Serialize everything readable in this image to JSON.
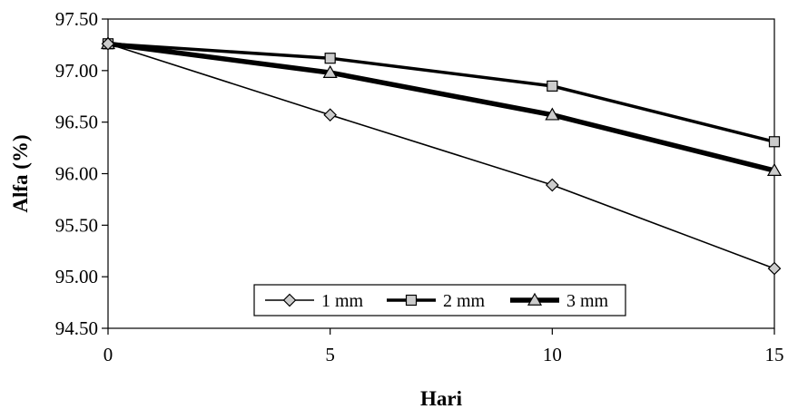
{
  "chart_data": {
    "type": "line",
    "xlabel": "Hari",
    "ylabel": "Alfa (%)",
    "x": [
      0,
      5,
      10,
      15
    ],
    "xlim": [
      0,
      15
    ],
    "ylim": [
      94.5,
      97.5
    ],
    "xticks": [
      "0",
      "5",
      "10",
      "15"
    ],
    "yticks": [
      "94.50",
      "95.00",
      "95.50",
      "96.00",
      "96.50",
      "97.00",
      "97.50"
    ],
    "grid": false,
    "legend_position": "bottom-center",
    "series": [
      {
        "name": "1 mm",
        "values": [
          97.26,
          96.57,
          95.89,
          95.08
        ],
        "marker": "diamond",
        "line_width": "thin",
        "color": "#000000",
        "marker_fill": "#cccccc"
      },
      {
        "name": "2 mm",
        "values": [
          97.26,
          97.12,
          96.85,
          96.31
        ],
        "marker": "square",
        "line_width": "medium",
        "color": "#000000",
        "marker_fill": "#cccccc"
      },
      {
        "name": "3 mm",
        "values": [
          97.26,
          96.98,
          96.57,
          96.03
        ],
        "marker": "triangle",
        "line_width": "thick",
        "color": "#000000",
        "marker_fill": "#cccccc"
      }
    ]
  }
}
